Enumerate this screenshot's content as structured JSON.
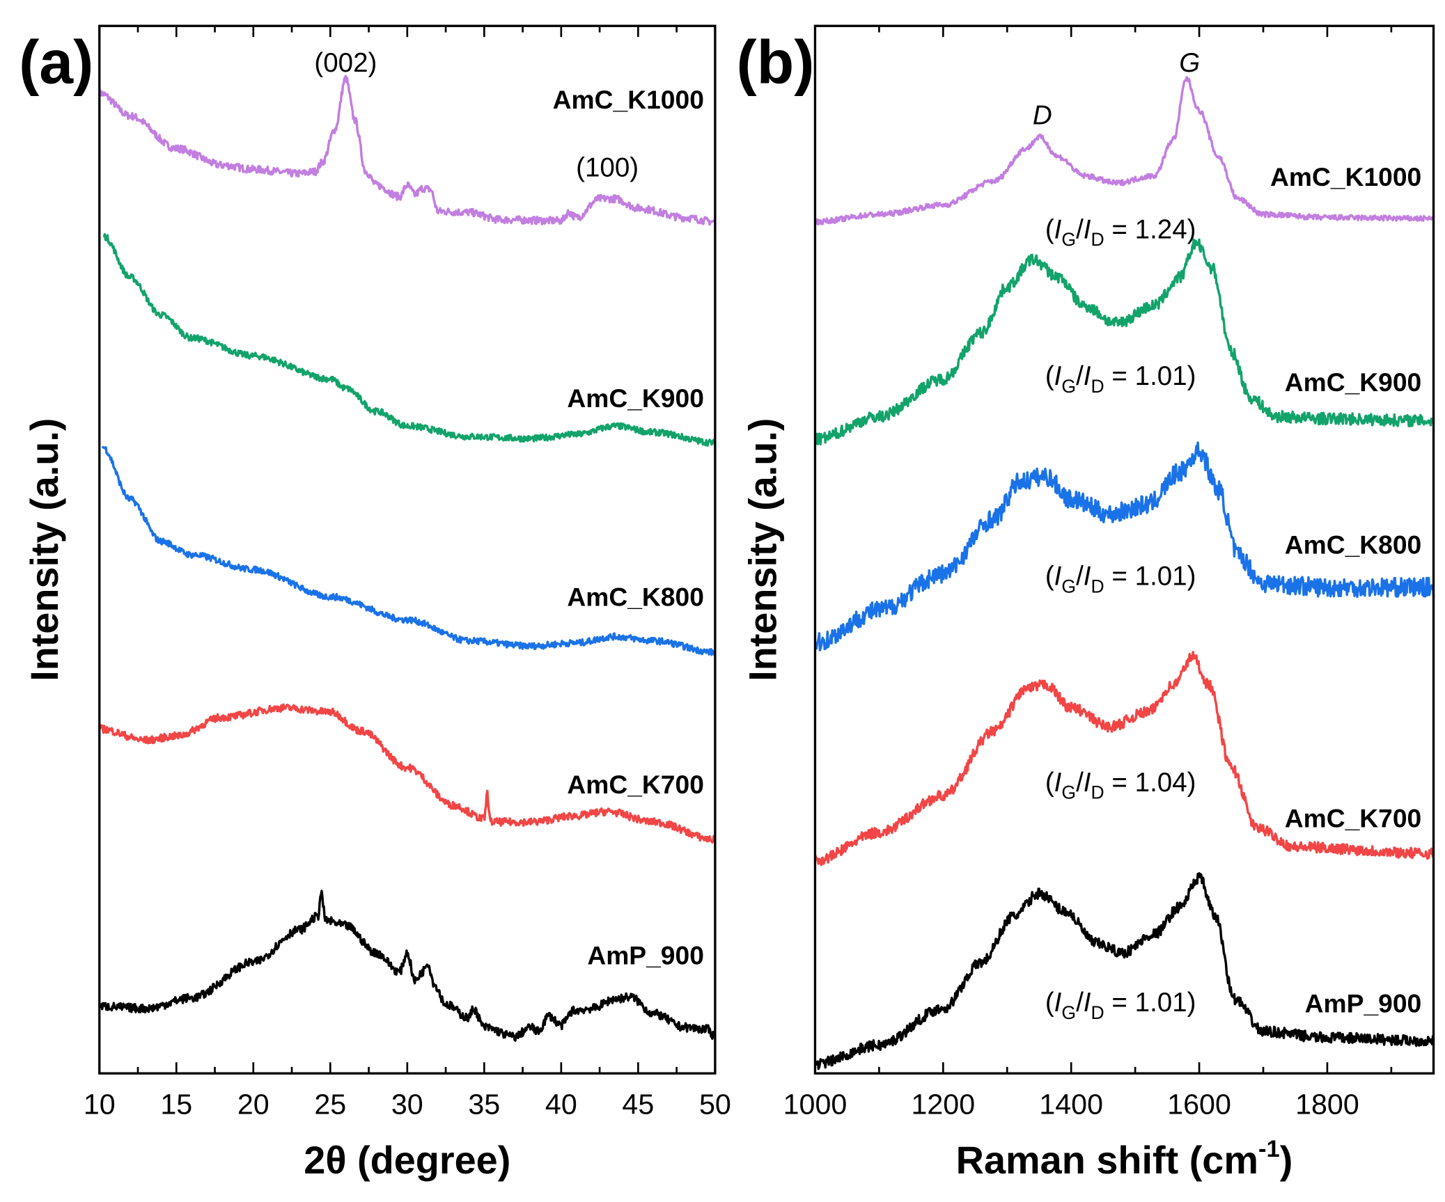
{
  "chart_data": [
    {
      "type": "line",
      "panel_label": "(a)",
      "xlabel": "2θ (degree)",
      "ylabel": "Intensity (a.u.)",
      "xlim": [
        10,
        50
      ],
      "ylim": [
        0,
        100
      ],
      "xticks": [
        10,
        15,
        20,
        25,
        30,
        35,
        40,
        45,
        50
      ],
      "minor_step": 2.5,
      "annotations": [
        {
          "text": "(002)",
          "x": 26,
          "y": 96.5
        },
        {
          "text": "(100)",
          "x": 43,
          "y": 86.5
        }
      ],
      "series": [
        {
          "name": "AmC_K1000",
          "color": "#c27ee0",
          "noise": 0.35,
          "label_y": 93,
          "x": [
            10,
            12,
            15,
            18,
            20,
            23,
            24,
            24.5,
            25.3,
            26,
            26.6,
            27.3,
            28,
            29.5,
            30,
            30.5,
            31,
            31.5,
            32,
            34,
            36,
            40,
            40.5,
            41,
            42.5,
            43.5,
            45,
            48,
            50
          ],
          "y": [
            93.6,
            91.4,
            88.3,
            86.7,
            86.3,
            85.9,
            86.1,
            87.0,
            90.1,
            95.0,
            91.0,
            86.1,
            84.8,
            83.7,
            84.8,
            83.9,
            84.5,
            84.4,
            82.3,
            82.2,
            81.5,
            81.4,
            82.2,
            81.7,
            83.5,
            83.5,
            82.6,
            81.7,
            81.3
          ]
        },
        {
          "name": "AmC_K900",
          "color": "#12a36b",
          "noise": 0.3,
          "label_y": 64.5,
          "x": [
            10.3,
            12,
            14,
            16,
            20,
            25,
            26,
            28,
            30,
            34,
            38,
            41,
            43.5,
            46,
            50
          ],
          "y": [
            79.9,
            76.0,
            72.4,
            70.2,
            68.5,
            66.3,
            65.4,
            63.2,
            61.8,
            60.8,
            60.6,
            61.0,
            61.8,
            61.2,
            60.2
          ]
        },
        {
          "name": "AmC_K800",
          "color": "#1a72e8",
          "noise": 0.3,
          "label_y": 45.5,
          "x": [
            10.2,
            12,
            14,
            16,
            20,
            25,
            30,
            34,
            38,
            41,
            43.5,
            46,
            50
          ],
          "y": [
            59.8,
            54.8,
            50.8,
            49.5,
            48.1,
            45.5,
            43.3,
            41.3,
            40.8,
            41.1,
            41.7,
            41.3,
            40.2
          ]
        },
        {
          "name": "AmC_K700",
          "color": "#f24545",
          "noise": 0.35,
          "label_y": 27.6,
          "x": [
            10,
            13,
            15,
            18,
            22,
            25,
            27,
            30,
            33,
            35,
            35.2,
            35.4,
            38,
            41,
            43,
            46,
            50
          ],
          "y": [
            32.9,
            31.8,
            32.2,
            34.0,
            34.9,
            34.5,
            32.7,
            29.2,
            25.6,
            24.3,
            26.7,
            24.0,
            24.0,
            24.6,
            25.0,
            24.0,
            22.3
          ]
        },
        {
          "name": "AmP_900",
          "color": "#000000",
          "noise": 0.4,
          "label_y": 11.3,
          "x": [
            10,
            13,
            16,
            20,
            23,
            24.2,
            24.4,
            24.7,
            26,
            28,
            29.5,
            30,
            30.5,
            31,
            31.3,
            31.8,
            32.5,
            34,
            34.3,
            35,
            37,
            38,
            38.5,
            39.2,
            40,
            40.8,
            42,
            43.5,
            44.5,
            46,
            48,
            49.5,
            50
          ],
          "y": [
            6.4,
            6.2,
            7.2,
            10.6,
            13.7,
            15.0,
            17.2,
            14.6,
            14.1,
            11.5,
            9.7,
            11.5,
            8.8,
            9.7,
            10.6,
            8.4,
            6.6,
            5.3,
            6.2,
            4.4,
            3.5,
            4.4,
            4.0,
            5.5,
            4.6,
            6.0,
            6.2,
            7.1,
            7.3,
            5.7,
            4.4,
            4.2,
            3.5
          ]
        }
      ]
    },
    {
      "type": "line",
      "panel_label": "(b)",
      "xlabel": "Raman shift  (cm",
      "xlabel_sup": "-1",
      "xlabel_end": ")",
      "ylabel": "Intensity (a.u.)",
      "xlim": [
        1000,
        1966
      ],
      "ylim": [
        0,
        100
      ],
      "xticks": [
        1000,
        1200,
        1400,
        1600,
        1800
      ],
      "minor_step": 100,
      "ratio_symbol": "I",
      "ratio_sub_num": "G",
      "ratio_sub_den": "D",
      "annotations": [
        {
          "text": "D",
          "x": 1355,
          "y": 91.5
        },
        {
          "text": "G",
          "x": 1585,
          "y": 96.5
        }
      ],
      "series": [
        {
          "name": "AmC_K1000",
          "color": "#c27ee0",
          "noise": 0.25,
          "label_y": 85.6,
          "ratio": "1.24",
          "ratio_y": 80.6,
          "x": [
            1000,
            1100,
            1200,
            1280,
            1330,
            1350,
            1380,
            1420,
            1470,
            1530,
            1560,
            1580,
            1600,
            1630,
            1660,
            1700,
            1800,
            1966
          ],
          "y": [
            81.3,
            82.0,
            82.9,
            85.2,
            88.3,
            89.4,
            87.5,
            85.7,
            85.0,
            85.7,
            89.2,
            95.0,
            91.9,
            87.5,
            83.5,
            82.0,
            81.7,
            81.6
          ]
        },
        {
          "name": "AmC_K900",
          "color": "#12a36b",
          "noise": 0.55,
          "label_y": 66,
          "ratio": "1.01",
          "ratio_y": 66.6,
          "x": [
            1000,
            1100,
            1200,
            1260,
            1300,
            1340,
            1380,
            1420,
            1470,
            1530,
            1570,
            1595,
            1620,
            1650,
            1680,
            1720,
            1800,
            1966
          ],
          "y": [
            60.5,
            62.7,
            66.3,
            70.7,
            75.1,
            77.7,
            76.0,
            73.3,
            71.6,
            73.3,
            76.0,
            79.3,
            76.9,
            68.9,
            64.5,
            62.7,
            62.5,
            62.3
          ]
        },
        {
          "name": "AmC_K800",
          "color": "#1a72e8",
          "noise": 0.9,
          "label_y": 50.5,
          "ratio": "1.01",
          "ratio_y": 47.5,
          "x": [
            1000,
            1100,
            1200,
            1280,
            1320,
            1360,
            1400,
            1460,
            1520,
            1570,
            1600,
            1630,
            1660,
            1700,
            1800,
            1966
          ],
          "y": [
            41.1,
            44.2,
            47.7,
            53.0,
            56.5,
            57.0,
            54.8,
            53.4,
            54.3,
            57.4,
            59.4,
            55.7,
            49.5,
            46.8,
            46.4,
            46.4
          ]
        },
        {
          "name": "AmC_K700",
          "color": "#f24545",
          "noise": 0.5,
          "label_y": 24.4,
          "ratio": "1.04",
          "ratio_y": 27.8,
          "x": [
            1000,
            1100,
            1200,
            1280,
            1330,
            1360,
            1400,
            1460,
            1520,
            1560,
            1590,
            1615,
            1650,
            1690,
            1750,
            1966
          ],
          "y": [
            20.3,
            23.0,
            26.5,
            32.7,
            36.7,
            37.1,
            34.9,
            33.1,
            34.5,
            37.1,
            39.8,
            37.1,
            29.2,
            23.4,
            21.6,
            21.0
          ]
        },
        {
          "name": "AmP_900",
          "color": "#000000",
          "noise": 0.5,
          "label_y": 6.7,
          "ratio": "1.01",
          "ratio_y": 6.8,
          "x": [
            1000,
            1100,
            1200,
            1260,
            1310,
            1350,
            1390,
            1440,
            1480,
            1530,
            1570,
            1600,
            1625,
            1655,
            1700,
            1800,
            1966
          ],
          "y": [
            0.9,
            2.7,
            6.2,
            10.6,
            15.0,
            17.2,
            15.5,
            12.4,
            11.5,
            13.3,
            15.9,
            18.7,
            15.0,
            7.1,
            4.0,
            3.4,
            3.1
          ]
        }
      ]
    }
  ]
}
